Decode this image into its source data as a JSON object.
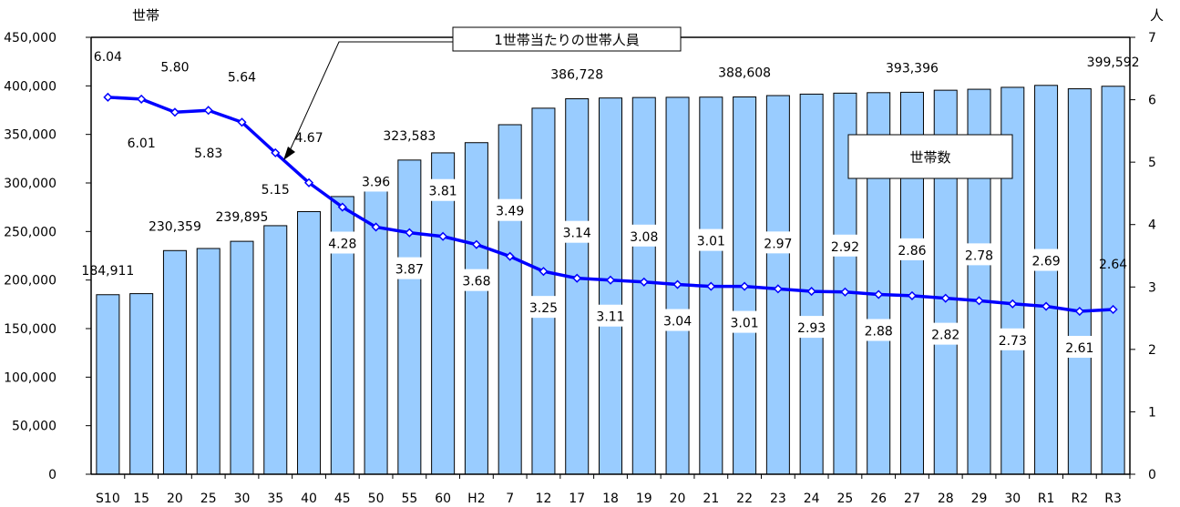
{
  "chart_data": {
    "type": "bar+line",
    "categories": [
      "S10",
      "15",
      "20",
      "25",
      "30",
      "35",
      "40",
      "45",
      "50",
      "55",
      "60",
      "H2",
      "7",
      "12",
      "17",
      "18",
      "19",
      "20",
      "21",
      "22",
      "23",
      "24",
      "25",
      "26",
      "27",
      "28",
      "29",
      "30",
      "R1",
      "R2",
      "R3"
    ],
    "series": [
      {
        "name": "世帯数",
        "type": "bar",
        "axis": "left",
        "color": "#99ccff",
        "values": [
          184911,
          186000,
          230359,
          232500,
          239895,
          256000,
          270500,
          286000,
          308000,
          323583,
          331000,
          341500,
          360000,
          377000,
          386728,
          387500,
          388000,
          388200,
          388400,
          388608,
          390000,
          391500,
          392500,
          393000,
          393396,
          395500,
          396500,
          398500,
          400500,
          397000,
          399592
        ]
      },
      {
        "name": "1世帯当たりの世帯人員",
        "type": "line",
        "axis": "right",
        "color": "#0000ff",
        "values": [
          6.04,
          6.01,
          5.8,
          5.83,
          5.64,
          5.15,
          4.67,
          4.28,
          3.96,
          3.87,
          3.81,
          3.68,
          3.49,
          3.25,
          3.14,
          3.11,
          3.08,
          3.04,
          3.01,
          3.01,
          2.97,
          2.93,
          2.92,
          2.88,
          2.86,
          2.82,
          2.78,
          2.73,
          2.69,
          2.61,
          2.64
        ]
      }
    ],
    "bar_labels": [
      {
        "index": 0,
        "text": "184,911"
      },
      {
        "index": 2,
        "text": "230,359"
      },
      {
        "index": 4,
        "text": "239,895"
      },
      {
        "index": 9,
        "text": "323,583"
      },
      {
        "index": 14,
        "text": "386,728"
      },
      {
        "index": 19,
        "text": "388,608"
      },
      {
        "index": 24,
        "text": "393,396"
      },
      {
        "index": 30,
        "text": "399,592"
      }
    ],
    "line_labels": [
      "6.04",
      "6.01",
      "5.80",
      "5.83",
      "5.64",
      "5.15",
      "4.67",
      "4.28",
      "3.96",
      "3.87",
      "3.81",
      "3.68",
      "3.49",
      "3.25",
      "3.14",
      "3.11",
      "3.08",
      "3.04",
      "3.01",
      "3.01",
      "2.97",
      "2.93",
      "2.92",
      "2.88",
      "2.86",
      "2.82",
      "2.78",
      "2.73",
      "2.69",
      "2.61",
      "2.64"
    ],
    "left_axis": {
      "unit": "世帯",
      "ylim": [
        0,
        450000
      ],
      "ticks": [
        "0",
        "50,000",
        "100,000",
        "150,000",
        "200,000",
        "250,000",
        "300,000",
        "350,000",
        "400,000",
        "450,000"
      ]
    },
    "right_axis": {
      "unit": "人",
      "ylim": [
        0,
        7
      ],
      "ticks": [
        "0",
        "1",
        "2",
        "3",
        "4",
        "5",
        "6",
        "7"
      ]
    },
    "legend_box": "世帯数",
    "callout": "1世帯当たりの世帯人員",
    "grid": false
  }
}
